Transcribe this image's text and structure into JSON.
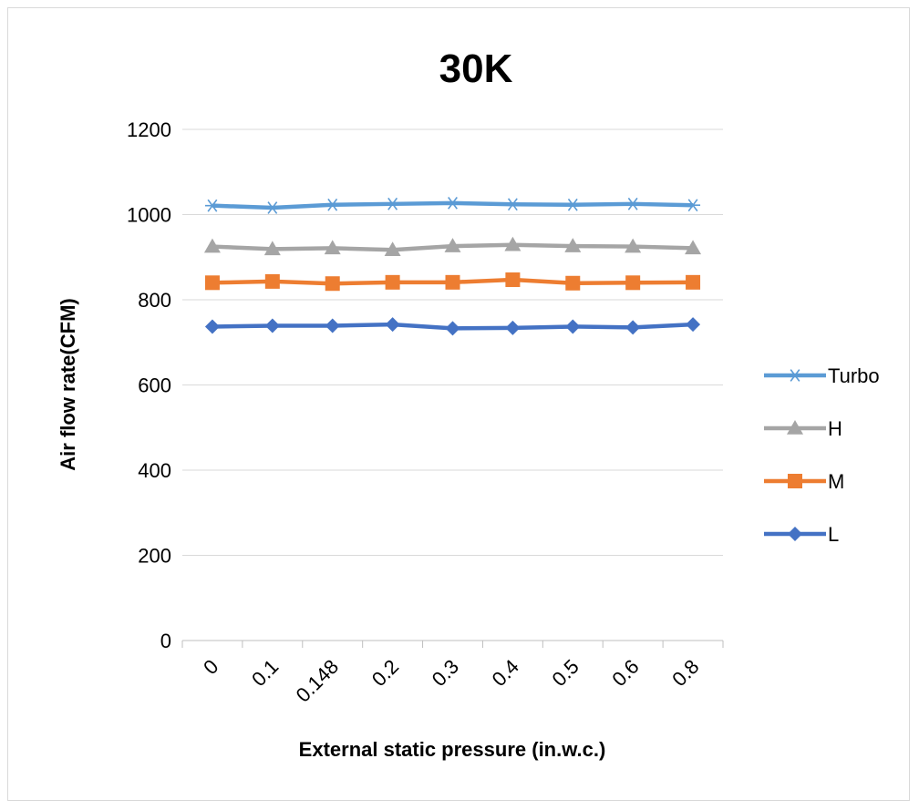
{
  "chart_data": {
    "type": "line",
    "title": "30K",
    "xlabel": "External static pressure (in.w.c.)",
    "ylabel": "Air flow rate(CFM)",
    "categories": [
      "0",
      "0.1",
      "0.148",
      "0.2",
      "0.3",
      "0.4",
      "0.5",
      "0.6",
      "0.8"
    ],
    "ylim": [
      0,
      1200
    ],
    "yticks": [
      0,
      200,
      400,
      600,
      800,
      1000,
      1200
    ],
    "grid": true,
    "legend_position": "right",
    "series": [
      {
        "name": "Turbo",
        "marker": "asterisk",
        "color": "#5B9BD5",
        "values": [
          1021,
          1016,
          1023,
          1025,
          1027,
          1024,
          1023,
          1025,
          1022
        ]
      },
      {
        "name": "H",
        "marker": "triangle",
        "color": "#A5A5A5",
        "values": [
          925,
          919,
          921,
          917,
          926,
          929,
          926,
          925,
          921
        ]
      },
      {
        "name": "M",
        "marker": "square",
        "color": "#ED7D31",
        "values": [
          840,
          843,
          838,
          841,
          841,
          847,
          839,
          840,
          841
        ]
      },
      {
        "name": "L",
        "marker": "diamond",
        "color": "#4472C4",
        "values": [
          737,
          739,
          739,
          742,
          733,
          734,
          737,
          735,
          742
        ]
      }
    ]
  }
}
